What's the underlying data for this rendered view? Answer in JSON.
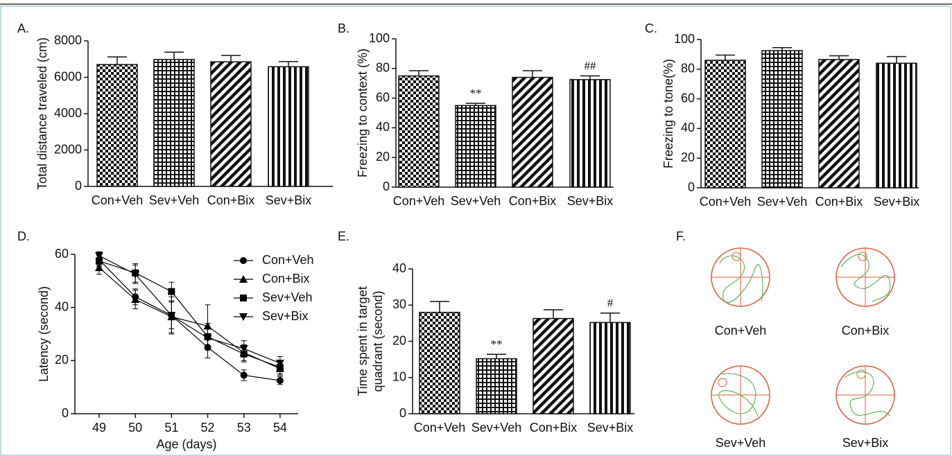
{
  "chart_data": [
    {
      "type": "bar",
      "panel": "A.",
      "ylabel": "Total distance traveled (cm)",
      "categories": [
        "Con+Veh",
        "Sev+Veh",
        "Con+Bix",
        "Sev+Bix"
      ],
      "values": [
        6700,
        6980,
        6850,
        6580
      ],
      "errors": [
        420,
        400,
        350,
        280
      ],
      "ylim": [
        0,
        8000
      ],
      "yticks": [
        0,
        2000,
        4000,
        6000,
        8000
      ]
    },
    {
      "type": "bar",
      "panel": "B.",
      "ylabel": "Freezing to context (%)",
      "categories": [
        "Con+Veh",
        "Sev+Veh",
        "Con+Bix",
        "Sev+Bix"
      ],
      "values": [
        75,
        55,
        74,
        72.5
      ],
      "errors": [
        3.5,
        1.5,
        4.5,
        2.5
      ],
      "annotations": [
        null,
        "**",
        null,
        "##"
      ],
      "ylim": [
        0,
        100
      ],
      "yticks": [
        0,
        20,
        40,
        60,
        80,
        100
      ]
    },
    {
      "type": "bar",
      "panel": "C.",
      "ylabel": "Freezing to tone(%)",
      "categories": [
        "Con+Veh",
        "Sev+Veh",
        "Con+Bix",
        "Sev+Bix"
      ],
      "values": [
        86,
        92.5,
        86.5,
        84
      ],
      "errors": [
        3.5,
        2,
        2.5,
        4.5
      ],
      "ylim": [
        0,
        100
      ],
      "yticks": [
        0,
        20,
        40,
        60,
        80,
        100
      ]
    },
    {
      "type": "line",
      "panel": "D.",
      "ylabel": "Latency (second)",
      "xlabel": "Age (days)",
      "x": [
        49,
        50,
        51,
        52,
        53,
        54
      ],
      "series": [
        {
          "name": "Con+Veh",
          "marker": "circle",
          "color": "#000000",
          "values": [
            58,
            44,
            37,
            25,
            14.5,
            12.5
          ],
          "errors": [
            2,
            3,
            5,
            4,
            2,
            1.5
          ]
        },
        {
          "name": "Con+Bix",
          "marker": "triangle",
          "color": "#000000",
          "values": [
            55,
            43,
            36.5,
            33,
            23,
            17
          ],
          "errors": [
            2.5,
            3.5,
            6,
            8,
            3,
            2.5
          ]
        },
        {
          "name": "Sev+Veh",
          "marker": "square",
          "color": "#000000",
          "values": [
            57.5,
            53,
            46,
            29,
            22.5,
            17.5
          ],
          "errors": [
            2,
            3.5,
            3.5,
            5,
            3,
            2.5
          ]
        },
        {
          "name": "Sev+Bix",
          "marker": "triangle-down",
          "color": "#000000",
          "values": [
            59.5,
            52.5,
            37,
            28.5,
            24.5,
            19
          ],
          "errors": [
            1.5,
            3.5,
            7,
            4,
            3,
            2.5
          ]
        }
      ],
      "xlim": [
        48.33,
        54.5
      ],
      "xticks": [
        49,
        50,
        51,
        52,
        53,
        54
      ],
      "ylim": [
        0,
        60
      ],
      "yticks": [
        0,
        20,
        40,
        60
      ]
    },
    {
      "type": "bar",
      "panel": "E.",
      "ylabel": [
        "Time spent in target",
        "quadrant (second)"
      ],
      "categories": [
        "Con+Veh",
        "Sev+Veh",
        "Con+Bix",
        "Sev+Bix"
      ],
      "values": [
        28,
        15.2,
        26.3,
        25.2
      ],
      "errors": [
        3,
        1.2,
        2.4,
        2.6
      ],
      "annotations": [
        null,
        "**",
        null,
        "#"
      ],
      "ylim": [
        0,
        40
      ],
      "yticks": [
        0,
        10,
        20,
        30,
        40
      ]
    }
  ],
  "figure_f": {
    "panel": "F.",
    "labels": [
      "Con+Veh",
      "Con+Bix",
      "Sev+Veh",
      "Sev+Bix"
    ]
  }
}
